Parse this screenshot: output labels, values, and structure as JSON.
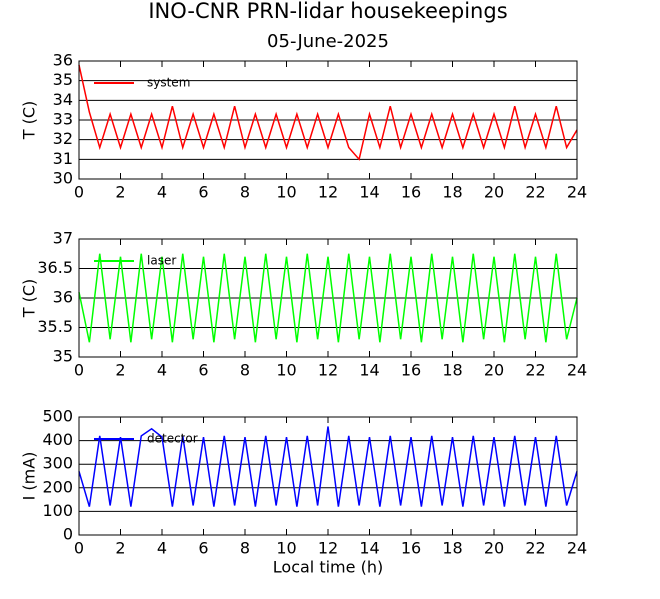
{
  "chart_data": [
    {
      "type": "line",
      "title": "INO-CNR PRN-lidar housekeepings",
      "subtitle": "05-June-2025",
      "ylabel": "T (C)",
      "xlim": [
        0,
        24
      ],
      "xticks": [
        0,
        2,
        4,
        6,
        8,
        10,
        12,
        14,
        16,
        18,
        20,
        22,
        24
      ],
      "ylim": [
        30,
        36
      ],
      "yticks": [
        30,
        31,
        32,
        33,
        34,
        35,
        36
      ],
      "grid": true,
      "legend": "upper left",
      "x": [
        0,
        0.5,
        1,
        1.5,
        2,
        2.5,
        3,
        3.5,
        4,
        4.5,
        5,
        5.5,
        6,
        6.5,
        7,
        7.5,
        8,
        8.5,
        9,
        9.5,
        10,
        10.5,
        11,
        11.5,
        12,
        12.5,
        13,
        13.5,
        14,
        14.5,
        15,
        15.5,
        16,
        16.5,
        17,
        17.5,
        18,
        18.5,
        19,
        19.5,
        20,
        20.5,
        21,
        21.5,
        22,
        22.5,
        23,
        23.5,
        24
      ],
      "series": [
        {
          "name": "system",
          "color": "#ff0000",
          "values": [
            35.8,
            33.4,
            31.6,
            33.3,
            31.6,
            33.3,
            31.6,
            33.3,
            31.6,
            33.7,
            31.6,
            33.3,
            31.6,
            33.3,
            31.6,
            33.7,
            31.6,
            33.3,
            31.6,
            33.3,
            31.6,
            33.3,
            31.6,
            33.3,
            31.6,
            33.3,
            31.6,
            31.0,
            33.3,
            31.6,
            33.7,
            31.6,
            33.3,
            31.6,
            33.3,
            31.6,
            33.3,
            31.6,
            33.3,
            31.6,
            33.3,
            31.6,
            33.7,
            31.6,
            33.3,
            31.6,
            33.7,
            31.6,
            32.5
          ]
        }
      ]
    },
    {
      "type": "line",
      "ylabel": "T (C)",
      "xlim": [
        0,
        24
      ],
      "xticks": [
        0,
        2,
        4,
        6,
        8,
        10,
        12,
        14,
        16,
        18,
        20,
        22,
        24
      ],
      "ylim": [
        35,
        37
      ],
      "yticks": [
        35,
        35.5,
        36,
        36.5,
        37
      ],
      "grid": true,
      "legend": "upper left",
      "x": [
        0,
        0.5,
        1,
        1.5,
        2,
        2.5,
        3,
        3.5,
        4,
        4.5,
        5,
        5.5,
        6,
        6.5,
        7,
        7.5,
        8,
        8.5,
        9,
        9.5,
        10,
        10.5,
        11,
        11.5,
        12,
        12.5,
        13,
        13.5,
        14,
        14.5,
        15,
        15.5,
        16,
        16.5,
        17,
        17.5,
        18,
        18.5,
        19,
        19.5,
        20,
        20.5,
        21,
        21.5,
        22,
        22.5,
        23,
        23.5,
        24
      ],
      "series": [
        {
          "name": "laser",
          "color": "#00ff00",
          "values": [
            36.1,
            35.25,
            36.75,
            35.3,
            36.7,
            35.25,
            36.75,
            35.3,
            36.7,
            35.25,
            36.75,
            35.3,
            36.7,
            35.25,
            36.75,
            35.3,
            36.7,
            35.25,
            36.75,
            35.3,
            36.7,
            35.25,
            36.75,
            35.3,
            36.7,
            35.25,
            36.75,
            35.3,
            36.7,
            35.25,
            36.75,
            35.3,
            36.7,
            35.25,
            36.75,
            35.3,
            36.7,
            35.25,
            36.75,
            35.3,
            36.7,
            35.25,
            36.75,
            35.3,
            36.7,
            35.25,
            36.75,
            35.3,
            36.0
          ]
        }
      ]
    },
    {
      "type": "line",
      "ylabel": "I (mA)",
      "xlabel": "Local time (h)",
      "xlim": [
        0,
        24
      ],
      "xticks": [
        0,
        2,
        4,
        6,
        8,
        10,
        12,
        14,
        16,
        18,
        20,
        22,
        24
      ],
      "ylim": [
        0,
        500
      ],
      "yticks": [
        0,
        100,
        200,
        300,
        400,
        500
      ],
      "grid": true,
      "legend": "upper left",
      "x": [
        0,
        0.5,
        1,
        1.5,
        2,
        2.5,
        3,
        3.5,
        4,
        4.5,
        5,
        5.5,
        6,
        6.5,
        7,
        7.5,
        8,
        8.5,
        9,
        9.5,
        10,
        10.5,
        11,
        11.5,
        12,
        12.5,
        13,
        13.5,
        14,
        14.5,
        15,
        15.5,
        16,
        16.5,
        17,
        17.5,
        18,
        18.5,
        19,
        19.5,
        20,
        20.5,
        21,
        21.5,
        22,
        22.5,
        23,
        23.5,
        24
      ],
      "series": [
        {
          "name": "detector",
          "color": "#0000ff",
          "values": [
            270,
            120,
            420,
            125,
            415,
            120,
            420,
            450,
            415,
            120,
            420,
            125,
            415,
            120,
            420,
            125,
            415,
            120,
            420,
            125,
            415,
            120,
            420,
            125,
            460,
            120,
            420,
            125,
            415,
            120,
            420,
            125,
            415,
            120,
            420,
            125,
            415,
            120,
            420,
            125,
            415,
            120,
            420,
            125,
            415,
            120,
            420,
            125,
            270
          ]
        }
      ]
    }
  ]
}
